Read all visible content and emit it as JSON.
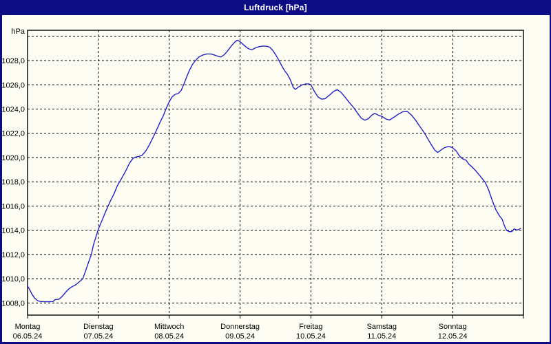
{
  "window": {
    "title": "Luftdruck [hPa]",
    "titlebar_color": "#0c0c85",
    "background_color": "#fdfdf4"
  },
  "chart_data": {
    "type": "line",
    "title": "Luftdruck [hPa]",
    "ylabel": "hPa",
    "xlabel": "",
    "grid": "dashed",
    "legend": "none",
    "ylim": [
      1007.0,
      1030.5
    ],
    "xlim_days": [
      0,
      7
    ],
    "y_gridlines": [
      {
        "value": 1008,
        "label": "1008,0"
      },
      {
        "value": 1010,
        "label": "1010,0"
      },
      {
        "value": 1012,
        "label": "1012,0"
      },
      {
        "value": 1014,
        "label": "1014,0"
      },
      {
        "value": 1016,
        "label": "1016,0"
      },
      {
        "value": 1018,
        "label": "1018,0"
      },
      {
        "value": 1020,
        "label": "1020,0"
      },
      {
        "value": 1022,
        "label": "1022,0"
      },
      {
        "value": 1024,
        "label": "1024,0"
      },
      {
        "value": 1026,
        "label": "1026,0"
      },
      {
        "value": 1028,
        "label": "1028,0"
      },
      {
        "value": 1030,
        "label": ""
      }
    ],
    "x_days": [
      {
        "name": "Montag",
        "date": "06.05.24"
      },
      {
        "name": "Dienstag",
        "date": "07.05.24"
      },
      {
        "name": "Mittwoch",
        "date": "08.05.24"
      },
      {
        "name": "Donnerstag",
        "date": "09.05.24"
      },
      {
        "name": "Freitag",
        "date": "10.05.24"
      },
      {
        "name": "Samstag",
        "date": "11.05.24"
      },
      {
        "name": "Sonntag",
        "date": "12.05.24"
      }
    ],
    "series": [
      {
        "name": "Luftdruck",
        "unit": "hPa",
        "color": "#2121c8",
        "points": [
          [
            0.0,
            1009.4
          ],
          [
            0.03,
            1009.1
          ],
          [
            0.06,
            1008.75
          ],
          [
            0.1,
            1008.4
          ],
          [
            0.14,
            1008.2
          ],
          [
            0.18,
            1008.12
          ],
          [
            0.24,
            1008.1
          ],
          [
            0.3,
            1008.1
          ],
          [
            0.36,
            1008.12
          ],
          [
            0.39,
            1008.28
          ],
          [
            0.44,
            1008.3
          ],
          [
            0.49,
            1008.55
          ],
          [
            0.54,
            1008.9
          ],
          [
            0.58,
            1009.15
          ],
          [
            0.63,
            1009.35
          ],
          [
            0.68,
            1009.5
          ],
          [
            0.73,
            1009.75
          ],
          [
            0.78,
            1010.0
          ],
          [
            0.82,
            1010.65
          ],
          [
            0.86,
            1011.35
          ],
          [
            0.9,
            1012.0
          ],
          [
            0.93,
            1012.8
          ],
          [
            0.97,
            1013.55
          ],
          [
            1.0,
            1014.1
          ],
          [
            1.05,
            1014.8
          ],
          [
            1.1,
            1015.5
          ],
          [
            1.16,
            1016.3
          ],
          [
            1.22,
            1017.0
          ],
          [
            1.27,
            1017.7
          ],
          [
            1.33,
            1018.3
          ],
          [
            1.39,
            1018.95
          ],
          [
            1.44,
            1019.55
          ],
          [
            1.49,
            1019.95
          ],
          [
            1.53,
            1020.05
          ],
          [
            1.58,
            1020.1
          ],
          [
            1.62,
            1020.2
          ],
          [
            1.67,
            1020.55
          ],
          [
            1.72,
            1021.05
          ],
          [
            1.77,
            1021.65
          ],
          [
            1.82,
            1022.25
          ],
          [
            1.87,
            1022.9
          ],
          [
            1.92,
            1023.5
          ],
          [
            1.96,
            1024.1
          ],
          [
            2.0,
            1024.6
          ],
          [
            2.04,
            1025.0
          ],
          [
            2.08,
            1025.2
          ],
          [
            2.13,
            1025.3
          ],
          [
            2.17,
            1025.55
          ],
          [
            2.21,
            1026.1
          ],
          [
            2.25,
            1026.7
          ],
          [
            2.29,
            1027.25
          ],
          [
            2.33,
            1027.7
          ],
          [
            2.37,
            1028.0
          ],
          [
            2.42,
            1028.3
          ],
          [
            2.47,
            1028.45
          ],
          [
            2.53,
            1028.55
          ],
          [
            2.59,
            1028.55
          ],
          [
            2.64,
            1028.45
          ],
          [
            2.69,
            1028.35
          ],
          [
            2.73,
            1028.3
          ],
          [
            2.77,
            1028.45
          ],
          [
            2.81,
            1028.7
          ],
          [
            2.85,
            1029.0
          ],
          [
            2.89,
            1029.3
          ],
          [
            2.93,
            1029.55
          ],
          [
            2.96,
            1029.68
          ],
          [
            3.0,
            1029.55
          ],
          [
            3.04,
            1029.35
          ],
          [
            3.09,
            1029.1
          ],
          [
            3.13,
            1028.95
          ],
          [
            3.17,
            1028.9
          ],
          [
            3.22,
            1029.05
          ],
          [
            3.27,
            1029.15
          ],
          [
            3.33,
            1029.2
          ],
          [
            3.38,
            1029.18
          ],
          [
            3.42,
            1029.1
          ],
          [
            3.46,
            1028.85
          ],
          [
            3.5,
            1028.5
          ],
          [
            3.55,
            1028.0
          ],
          [
            3.59,
            1027.55
          ],
          [
            3.63,
            1027.15
          ],
          [
            3.67,
            1026.85
          ],
          [
            3.71,
            1026.4
          ],
          [
            3.75,
            1025.8
          ],
          [
            3.78,
            1025.62
          ],
          [
            3.82,
            1025.8
          ],
          [
            3.87,
            1025.98
          ],
          [
            3.93,
            1026.08
          ],
          [
            3.97,
            1026.08
          ],
          [
            4.0,
            1026.0
          ],
          [
            4.05,
            1025.45
          ],
          [
            4.1,
            1025.0
          ],
          [
            4.15,
            1024.82
          ],
          [
            4.2,
            1024.85
          ],
          [
            4.26,
            1025.15
          ],
          [
            4.32,
            1025.45
          ],
          [
            4.37,
            1025.6
          ],
          [
            4.42,
            1025.4
          ],
          [
            4.48,
            1025.0
          ],
          [
            4.54,
            1024.55
          ],
          [
            4.6,
            1024.15
          ],
          [
            4.66,
            1023.65
          ],
          [
            4.71,
            1023.25
          ],
          [
            4.76,
            1023.08
          ],
          [
            4.81,
            1023.2
          ],
          [
            4.86,
            1023.5
          ],
          [
            4.9,
            1023.65
          ],
          [
            4.95,
            1023.5
          ],
          [
            5.0,
            1023.4
          ],
          [
            5.06,
            1023.18
          ],
          [
            5.11,
            1023.1
          ],
          [
            5.17,
            1023.32
          ],
          [
            5.24,
            1023.6
          ],
          [
            5.3,
            1023.78
          ],
          [
            5.36,
            1023.8
          ],
          [
            5.42,
            1023.5
          ],
          [
            5.48,
            1023.05
          ],
          [
            5.54,
            1022.55
          ],
          [
            5.6,
            1022.05
          ],
          [
            5.65,
            1021.55
          ],
          [
            5.7,
            1021.05
          ],
          [
            5.75,
            1020.6
          ],
          [
            5.79,
            1020.42
          ],
          [
            5.83,
            1020.6
          ],
          [
            5.88,
            1020.8
          ],
          [
            5.93,
            1020.9
          ],
          [
            5.97,
            1020.88
          ],
          [
            6.0,
            1020.8
          ],
          [
            6.05,
            1020.55
          ],
          [
            6.1,
            1020.1
          ],
          [
            6.14,
            1019.9
          ],
          [
            6.19,
            1019.78
          ],
          [
            6.23,
            1019.45
          ],
          [
            6.27,
            1019.25
          ],
          [
            6.32,
            1018.95
          ],
          [
            6.37,
            1018.6
          ],
          [
            6.42,
            1018.25
          ],
          [
            6.46,
            1017.95
          ],
          [
            6.51,
            1017.3
          ],
          [
            6.56,
            1016.45
          ],
          [
            6.61,
            1015.7
          ],
          [
            6.66,
            1015.2
          ],
          [
            6.7,
            1014.9
          ],
          [
            6.73,
            1014.4
          ],
          [
            6.76,
            1014.0
          ],
          [
            6.8,
            1013.88
          ],
          [
            6.84,
            1013.9
          ],
          [
            6.87,
            1014.12
          ],
          [
            6.9,
            1014.02
          ],
          [
            6.93,
            1014.05
          ],
          [
            6.96,
            1014.15
          ]
        ]
      }
    ]
  }
}
